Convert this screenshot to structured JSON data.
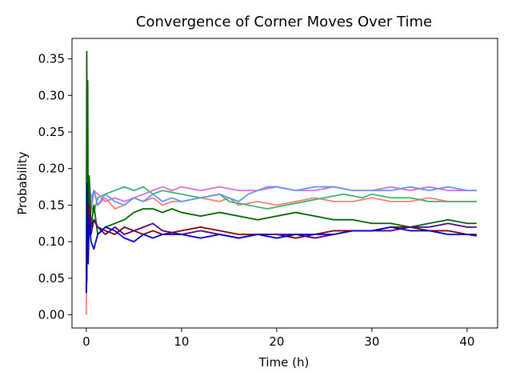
{
  "chart_data": {
    "type": "line",
    "title": "Convergence of Corner Moves Over Time",
    "xlabel": "Time (h)",
    "ylabel": "Probability",
    "xlim": [
      -1.5,
      43.2
    ],
    "ylim": [
      -0.018,
      0.378
    ],
    "xticks": [
      0,
      10,
      20,
      30,
      40
    ],
    "yticks": [
      0.0,
      0.05,
      0.1,
      0.15,
      0.2,
      0.25,
      0.3,
      0.35
    ],
    "xtick_labels": [
      "0",
      "10",
      "20",
      "30",
      "40"
    ],
    "ytick_labels": [
      "0.00",
      "0.05",
      "0.10",
      "0.15",
      "0.20",
      "0.25",
      "0.30",
      "0.35"
    ],
    "grid": false,
    "legend": "none",
    "series": [
      {
        "color": "#fa8072",
        "x": [
          0,
          0.05,
          0.1,
          0.2,
          0.3,
          0.5,
          0.8,
          1.2,
          2,
          3,
          4,
          5,
          6,
          7,
          8,
          9,
          10,
          12,
          14,
          15,
          16,
          18,
          20,
          22,
          24,
          26,
          28,
          30,
          32,
          34,
          36,
          38,
          40,
          41
        ],
        "y": [
          0.0,
          0.08,
          0.21,
          0.12,
          0.18,
          0.14,
          0.17,
          0.15,
          0.16,
          0.145,
          0.15,
          0.16,
          0.155,
          0.16,
          0.15,
          0.155,
          0.155,
          0.16,
          0.155,
          0.16,
          0.15,
          0.155,
          0.15,
          0.155,
          0.16,
          0.155,
          0.155,
          0.16,
          0.155,
          0.155,
          0.16,
          0.155,
          0.155,
          0.155
        ]
      },
      {
        "color": "#3cb371",
        "x": [
          0,
          0.05,
          0.1,
          0.2,
          0.3,
          0.5,
          0.8,
          1.2,
          2,
          3,
          4,
          5,
          6,
          7,
          8,
          10,
          12,
          14,
          15,
          17,
          19,
          21,
          23,
          25,
          27,
          29,
          30,
          32,
          34,
          36,
          38,
          40,
          41
        ],
        "y": [
          0.04,
          0.09,
          0.19,
          0.14,
          0.16,
          0.15,
          0.14,
          0.16,
          0.165,
          0.17,
          0.175,
          0.17,
          0.175,
          0.165,
          0.17,
          0.165,
          0.16,
          0.165,
          0.155,
          0.15,
          0.145,
          0.15,
          0.155,
          0.16,
          0.165,
          0.16,
          0.165,
          0.16,
          0.16,
          0.155,
          0.155,
          0.155,
          0.155
        ]
      },
      {
        "color": "#da70d6",
        "x": [
          0,
          0.05,
          0.1,
          0.2,
          0.3,
          0.5,
          0.8,
          1.2,
          2,
          3,
          4,
          5,
          6,
          7,
          8,
          9,
          10,
          12,
          14,
          16,
          18,
          20,
          22,
          24,
          26,
          28,
          30,
          32,
          34,
          36,
          38,
          40,
          41
        ],
        "y": [
          0.05,
          0.12,
          0.23,
          0.15,
          0.18,
          0.16,
          0.17,
          0.165,
          0.155,
          0.16,
          0.155,
          0.16,
          0.165,
          0.17,
          0.175,
          0.17,
          0.175,
          0.17,
          0.175,
          0.17,
          0.17,
          0.175,
          0.17,
          0.17,
          0.175,
          0.17,
          0.17,
          0.175,
          0.17,
          0.175,
          0.17,
          0.17,
          0.17
        ]
      },
      {
        "color": "#6495ed",
        "x": [
          0,
          0.05,
          0.1,
          0.2,
          0.3,
          0.5,
          0.8,
          1.2,
          2,
          3,
          4,
          5,
          6,
          7,
          8,
          9,
          10,
          12,
          14,
          15,
          16,
          17,
          18,
          19,
          20,
          22,
          24,
          26,
          28,
          30,
          32,
          34,
          36,
          38,
          40,
          41
        ],
        "y": [
          0.04,
          0.1,
          0.2,
          0.14,
          0.19,
          0.15,
          0.17,
          0.15,
          0.165,
          0.155,
          0.15,
          0.16,
          0.155,
          0.165,
          0.155,
          0.16,
          0.155,
          0.16,
          0.165,
          0.16,
          0.155,
          0.165,
          0.17,
          0.175,
          0.175,
          0.17,
          0.175,
          0.175,
          0.17,
          0.17,
          0.17,
          0.175,
          0.17,
          0.175,
          0.17,
          0.17
        ]
      },
      {
        "color": "#006400",
        "x": [
          0,
          0.05,
          0.1,
          0.15,
          0.2,
          0.3,
          0.5,
          0.8,
          1.2,
          2,
          3,
          4,
          5,
          6,
          7,
          8,
          9,
          10,
          12,
          14,
          16,
          18,
          20,
          22,
          24,
          26,
          28,
          30,
          32,
          34,
          36,
          38,
          40,
          41
        ],
        "y": [
          0.03,
          0.36,
          0.15,
          0.32,
          0.09,
          0.19,
          0.12,
          0.15,
          0.11,
          0.12,
          0.125,
          0.13,
          0.14,
          0.145,
          0.145,
          0.14,
          0.145,
          0.14,
          0.135,
          0.14,
          0.135,
          0.13,
          0.135,
          0.14,
          0.135,
          0.13,
          0.13,
          0.125,
          0.125,
          0.12,
          0.125,
          0.13,
          0.125,
          0.125
        ]
      },
      {
        "color": "#800000",
        "x": [
          0,
          0.05,
          0.1,
          0.2,
          0.3,
          0.5,
          0.8,
          1.2,
          2,
          3,
          4,
          5,
          6,
          7,
          8,
          10,
          12,
          14,
          16,
          18,
          20,
          22,
          24,
          26,
          28,
          30,
          32,
          34,
          36,
          38,
          40,
          41
        ],
        "y": [
          0.03,
          0.06,
          0.14,
          0.09,
          0.15,
          0.12,
          0.13,
          0.12,
          0.115,
          0.11,
          0.12,
          0.115,
          0.11,
          0.115,
          0.11,
          0.115,
          0.12,
          0.115,
          0.11,
          0.11,
          0.11,
          0.105,
          0.11,
          0.115,
          0.115,
          0.115,
          0.12,
          0.12,
          0.115,
          0.115,
          0.11,
          0.11
        ]
      },
      {
        "color": "#4b0082",
        "x": [
          0,
          0.05,
          0.1,
          0.2,
          0.3,
          0.5,
          0.8,
          1.2,
          2,
          3,
          4,
          5,
          6,
          7,
          8,
          10,
          12,
          14,
          16,
          18,
          20,
          22,
          24,
          26,
          28,
          30,
          32,
          34,
          36,
          38,
          40,
          41
        ],
        "y": [
          0.04,
          0.05,
          0.17,
          0.1,
          0.14,
          0.11,
          0.13,
          0.12,
          0.11,
          0.12,
          0.11,
          0.115,
          0.12,
          0.125,
          0.115,
          0.11,
          0.115,
          0.11,
          0.105,
          0.11,
          0.11,
          0.11,
          0.105,
          0.11,
          0.115,
          0.115,
          0.115,
          0.12,
          0.12,
          0.125,
          0.12,
          0.12
        ]
      },
      {
        "color": "#0000cd",
        "x": [
          0,
          0.05,
          0.1,
          0.2,
          0.3,
          0.5,
          0.8,
          1.2,
          2,
          3,
          4,
          5,
          6,
          7,
          8,
          10,
          12,
          14,
          16,
          18,
          20,
          22,
          24,
          26,
          28,
          30,
          32,
          34,
          36,
          38,
          40,
          41
        ],
        "y": [
          0.03,
          0.05,
          0.18,
          0.07,
          0.13,
          0.1,
          0.09,
          0.11,
          0.12,
          0.115,
          0.105,
          0.1,
          0.11,
          0.105,
          0.11,
          0.11,
          0.105,
          0.11,
          0.105,
          0.11,
          0.105,
          0.11,
          0.11,
          0.11,
          0.115,
          0.115,
          0.12,
          0.115,
          0.115,
          0.11,
          0.11,
          0.108
        ]
      }
    ]
  }
}
